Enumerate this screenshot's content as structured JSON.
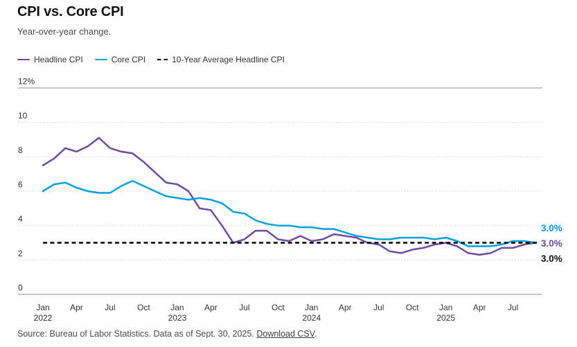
{
  "header": {
    "title": "CPI vs. Core CPI",
    "subtitle": "Year-over-year change."
  },
  "legend": [
    {
      "label": "Headline CPI",
      "color": "#6b4ba3",
      "style": "solid"
    },
    {
      "label": "Core CPI",
      "color": "#00a2e0",
      "style": "solid"
    },
    {
      "label": "10-Year Average Headline CPI",
      "color": "#000000",
      "style": "dashed"
    }
  ],
  "chart_data": {
    "type": "line",
    "title": "CPI vs. Core CPI",
    "subtitle": "Year-over-year change.",
    "ylabel": "",
    "xlabel": "",
    "ylim": [
      0,
      12
    ],
    "grid": "horizontal-dotted",
    "legend_position": "top-left",
    "x": [
      "Jan 2022",
      "Feb 2022",
      "Mar 2022",
      "Apr 2022",
      "May 2022",
      "Jun 2022",
      "Jul 2022",
      "Aug 2022",
      "Sep 2022",
      "Oct 2022",
      "Nov 2022",
      "Dec 2022",
      "Jan 2023",
      "Feb 2023",
      "Mar 2023",
      "Apr 2023",
      "May 2023",
      "Jun 2023",
      "Jul 2023",
      "Aug 2023",
      "Sep 2023",
      "Oct 2023",
      "Nov 2023",
      "Dec 2023",
      "Jan 2024",
      "Feb 2024",
      "Mar 2024",
      "Apr 2024",
      "May 2024",
      "Jun 2024",
      "Jul 2024",
      "Aug 2024",
      "Sep 2024",
      "Oct 2024",
      "Nov 2024",
      "Dec 2024",
      "Jan 2025",
      "Feb 2025",
      "Mar 2025",
      "Apr 2025",
      "May 2025",
      "Jun 2025",
      "Jul 2025",
      "Aug 2025",
      "Sep 2025"
    ],
    "y_ticks": [
      {
        "value": 12,
        "label": "12%"
      },
      {
        "value": 10,
        "label": "10"
      },
      {
        "value": 8,
        "label": "8"
      },
      {
        "value": 6,
        "label": "6"
      },
      {
        "value": 4,
        "label": "4"
      },
      {
        "value": 2,
        "label": "2"
      },
      {
        "value": 0,
        "label": "0"
      }
    ],
    "x_ticks": [
      {
        "index": 0,
        "label": "Jan",
        "sublabel": "2022"
      },
      {
        "index": 3,
        "label": "Apr"
      },
      {
        "index": 6,
        "label": "Jul"
      },
      {
        "index": 9,
        "label": "Oct"
      },
      {
        "index": 12,
        "label": "Jan",
        "sublabel": "2023"
      },
      {
        "index": 15,
        "label": "Apr"
      },
      {
        "index": 18,
        "label": "Jul"
      },
      {
        "index": 21,
        "label": "Oct"
      },
      {
        "index": 24,
        "label": "Jan",
        "sublabel": "2024"
      },
      {
        "index": 27,
        "label": "Apr"
      },
      {
        "index": 30,
        "label": "Jul"
      },
      {
        "index": 33,
        "label": "Oct"
      },
      {
        "index": 36,
        "label": "Jan",
        "sublabel": "2025"
      },
      {
        "index": 39,
        "label": "Apr"
      },
      {
        "index": 42,
        "label": "Jul"
      }
    ],
    "series": [
      {
        "name": "Headline CPI",
        "color": "#6b4ba3",
        "values": [
          7.5,
          7.9,
          8.5,
          8.3,
          8.6,
          9.1,
          8.5,
          8.3,
          8.2,
          7.7,
          7.1,
          6.5,
          6.4,
          6.0,
          5.0,
          4.9,
          4.0,
          3.0,
          3.2,
          3.7,
          3.7,
          3.2,
          3.1,
          3.4,
          3.1,
          3.2,
          3.5,
          3.4,
          3.3,
          3.0,
          2.9,
          2.5,
          2.4,
          2.6,
          2.7,
          2.9,
          3.0,
          2.8,
          2.4,
          2.3,
          2.4,
          2.7,
          2.7,
          2.9,
          3.0
        ]
      },
      {
        "name": "Core CPI",
        "color": "#00a2e0",
        "values": [
          6.0,
          6.4,
          6.5,
          6.2,
          6.0,
          5.9,
          5.9,
          6.3,
          6.6,
          6.3,
          6.0,
          5.7,
          5.6,
          5.5,
          5.6,
          5.5,
          5.3,
          4.8,
          4.7,
          4.3,
          4.1,
          4.0,
          4.0,
          3.9,
          3.9,
          3.8,
          3.8,
          3.6,
          3.4,
          3.3,
          3.2,
          3.2,
          3.3,
          3.3,
          3.3,
          3.2,
          3.3,
          3.1,
          2.8,
          2.8,
          2.8,
          2.9,
          3.1,
          3.1,
          3.0
        ]
      }
    ],
    "reference_line": {
      "name": "10-Year Average Headline CPI",
      "value": 3.0,
      "color": "#000000",
      "style": "dashed"
    },
    "end_labels": [
      {
        "text": "3.0%",
        "series": "Core CPI",
        "color": "#00a2e0"
      },
      {
        "text": "3.0%",
        "series": "Headline CPI",
        "color": "#6b4ba3"
      },
      {
        "text": "3.0%",
        "series": "10-Year Average Headline CPI",
        "color": "#111111"
      }
    ]
  },
  "footer": {
    "source_text": "Source: Bureau of Labor Statistics. Data as of Sept. 30, 2025. ",
    "link_text": "Download CSV",
    "suffix": "."
  }
}
